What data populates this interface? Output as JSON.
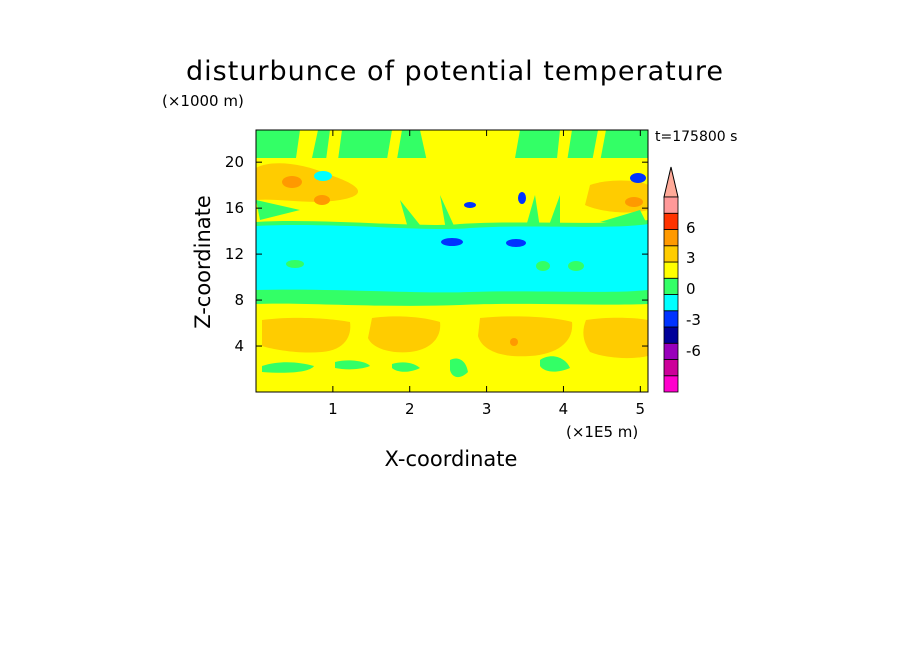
{
  "chart_data": {
    "type": "heatmap",
    "title": "disturbunce of potential temperature",
    "xlabel": "X-coordinate",
    "ylabel": "Z-coordinate",
    "x_unit": "(×1E5 m)",
    "y_unit": "(×1000 m)",
    "time_label": "t=175800 s",
    "xlim": [
      0,
      5.1
    ],
    "ylim": [
      0,
      22.8
    ],
    "xticks": [
      "1",
      "2",
      "3",
      "4",
      "5"
    ],
    "yticks": [
      "4",
      "8",
      "12",
      "16",
      "20"
    ],
    "colorbar": {
      "tick_labels": [
        "6",
        "3",
        "0",
        "-3",
        "-6"
      ],
      "levels": [
        -7.5,
        -6,
        -4.5,
        -3,
        -1.5,
        0,
        1.5,
        3,
        4.5,
        6,
        7.5
      ],
      "colors": [
        "#ff00cc",
        "#cc0099",
        "#9900bb",
        "#000099",
        "#0033ff",
        "#00ffff",
        "#33ff66",
        "#ffff00",
        "#ffcc00",
        "#ff9900",
        "#ff3300",
        "#ff9999",
        "#ffaa99"
      ]
    },
    "regions": [
      {
        "z_range": [
          0,
          2
        ],
        "level": "0 to 1.5",
        "color": "#ffff00"
      },
      {
        "z_range": [
          2,
          8
        ],
        "level": "1.5 to 3",
        "color": "#ffcc00"
      },
      {
        "z_range": [
          8,
          9
        ],
        "level": "-1.5 to 0",
        "color": "#33ff66"
      },
      {
        "z_range": [
          9,
          14.5
        ],
        "level": "-3 to -1.5",
        "color": "#00ffff"
      },
      {
        "z_range": [
          14.5,
          19
        ],
        "level": "0 to 3",
        "color": "#ffff00"
      },
      {
        "z_range": [
          19,
          22.8
        ],
        "level": "-1.5 to 1.5",
        "color": "#33ff66"
      }
    ]
  }
}
